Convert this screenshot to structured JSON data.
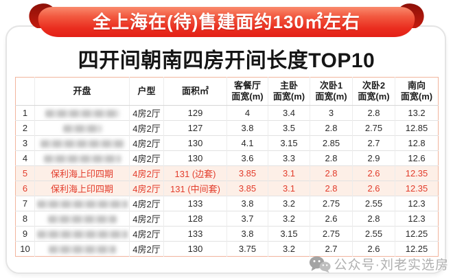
{
  "banner": {
    "text": "全上海在(待)售建面约130㎡左右"
  },
  "title": "四开间朝南四房开间长度TOP10",
  "chart_data": {
    "type": "table",
    "title": "四开间朝南四房开间长度TOP10",
    "banner": "全上海在(待)售建面约130㎡左右",
    "headers": [
      {
        "label": ""
      },
      {
        "label": "开盘"
      },
      {
        "label": "户型"
      },
      {
        "label": "面积㎡"
      },
      {
        "label": "客餐厅",
        "sub": "面宽(m)"
      },
      {
        "label": "主卧",
        "sub": "面宽(m)"
      },
      {
        "label": "次卧1",
        "sub": "面宽(m)"
      },
      {
        "label": "次卧2",
        "sub": "面宽(m)"
      },
      {
        "label": "南向",
        "sub": "面宽(m)"
      }
    ],
    "rows": [
      {
        "rank": "1",
        "project": "",
        "project_blurred": true,
        "blur_width": 108,
        "layout": "4房2厅",
        "area": "129",
        "living": "4",
        "master": "3.4",
        "bed1": "3",
        "bed2": "2.8",
        "south": "13.2",
        "highlight": false
      },
      {
        "rank": "2",
        "project": "",
        "project_blurred": true,
        "blur_width": 56,
        "layout": "4房2厅",
        "area": "127",
        "living": "3.8",
        "master": "3.5",
        "bed1": "2.8",
        "bed2": "2.75",
        "south": "12.85",
        "highlight": false
      },
      {
        "rank": "3",
        "project": "",
        "project_blurred": true,
        "blur_width": 122,
        "layout": "4房2厅",
        "area": "130",
        "living": "4.1",
        "master": "3.15",
        "bed1": "2.85",
        "bed2": "2.7",
        "south": "12.8",
        "highlight": false
      },
      {
        "rank": "4",
        "project": "",
        "project_blurred": true,
        "blur_width": 112,
        "layout": "4房2厅",
        "area": "130",
        "living": "3.6",
        "master": "3.3",
        "bed1": "2.8",
        "bed2": "2.9",
        "south": "12.6",
        "highlight": false
      },
      {
        "rank": "5",
        "project": "保利海上印四期",
        "project_blurred": false,
        "blur_width": 0,
        "layout": "4房2厅",
        "area": "131 (边套)",
        "living": "3.85",
        "master": "3.1",
        "bed1": "2.8",
        "bed2": "2.6",
        "south": "12.35",
        "highlight": true
      },
      {
        "rank": "6",
        "project": "保利海上印四期",
        "project_blurred": false,
        "blur_width": 0,
        "layout": "4房2厅",
        "area": "131 (中间套)",
        "living": "3.85",
        "master": "3.1",
        "bed1": "2.8",
        "bed2": "2.6",
        "south": "12.35",
        "highlight": true
      },
      {
        "rank": "7",
        "project": "",
        "project_blurred": true,
        "blur_width": 132,
        "layout": "4房2厅",
        "area": "133",
        "living": "3.8",
        "master": "3.2",
        "bed1": "2.75",
        "bed2": "2.55",
        "south": "12.3",
        "highlight": false
      },
      {
        "rank": "8",
        "project": "",
        "project_blurred": true,
        "blur_width": 100,
        "layout": "4房2厅",
        "area": "128",
        "living": "3.7",
        "master": "3.2",
        "bed1": "2.6",
        "bed2": "2.8",
        "south": "12.3",
        "highlight": false
      },
      {
        "rank": "9",
        "project": "",
        "project_blurred": true,
        "blur_width": 132,
        "layout": "4房2厅",
        "area": "133",
        "living": "3.8",
        "master": "3.15",
        "bed1": "2.75",
        "bed2": "2.55",
        "south": "12.25",
        "highlight": false
      },
      {
        "rank": "10",
        "project": "",
        "project_blurred": true,
        "blur_width": 98,
        "layout": "4房2厅",
        "area": "130",
        "living": "3.75",
        "master": "3.2",
        "bed1": "2.7",
        "bed2": "2.6",
        "south": "12.25",
        "highlight": false
      }
    ]
  },
  "watermark": {
    "text": "公众号·刘老实选房",
    "icon": "wechat-icon"
  },
  "colors": {
    "banner_red": "#ea2a1c",
    "banner_light": "#f98a6d",
    "banner_curl_dark": "#9a1309",
    "highlight_bg": "#fdefe7",
    "highlight_text": "#e23b2a",
    "table_outer_border": "#f2b49c",
    "row_border": "#e2e2e2",
    "watermark_gray": "#a8a8a8"
  }
}
